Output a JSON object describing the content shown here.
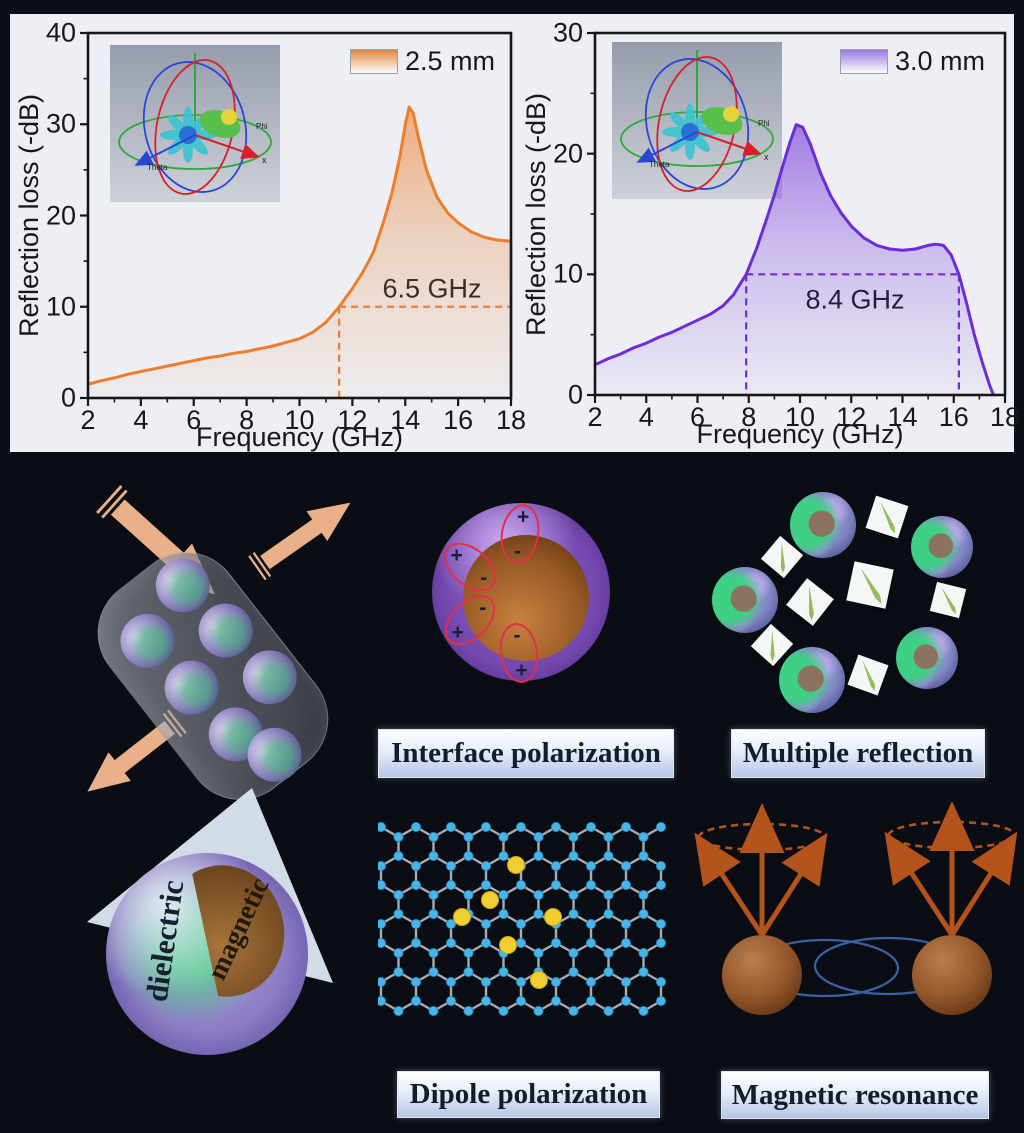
{
  "chart_data": [
    {
      "type": "area",
      "xlabel": "Frequency (GHz)",
      "ylabel": "Reflection loss (-dB)",
      "xlim": [
        2,
        18
      ],
      "ylim": [
        0,
        40
      ],
      "xticks": [
        2,
        4,
        6,
        8,
        10,
        12,
        14,
        16,
        18
      ],
      "yticks": [
        0,
        10,
        20,
        30,
        40
      ],
      "grid": false,
      "legend": {
        "label": "2.5 mm",
        "position": "top-right"
      },
      "color": "#ED7D2B",
      "annotation": {
        "text": "6.5 GHz",
        "level_db": 10,
        "x_start": 11.5,
        "x_end": 18
      },
      "series": [
        {
          "name": "2.5 mm",
          "x": [
            2,
            2.5,
            3,
            3.5,
            4,
            4.5,
            5,
            5.5,
            6,
            6.5,
            7,
            7.5,
            8,
            8.5,
            9,
            9.5,
            10,
            10.5,
            11,
            11.5,
            12,
            12.4,
            12.8,
            13.2,
            13.5,
            13.8,
            14.0,
            14.15,
            14.3,
            14.5,
            14.8,
            15.2,
            15.6,
            16,
            16.5,
            17,
            17.5,
            18
          ],
          "y": [
            1.5,
            1.9,
            2.2,
            2.6,
            2.9,
            3.2,
            3.5,
            3.8,
            4.1,
            4.4,
            4.6,
            4.9,
            5.1,
            5.4,
            5.7,
            6.1,
            6.5,
            7.2,
            8.3,
            10,
            12,
            13.8,
            16,
            19.5,
            22.5,
            26.5,
            30,
            31.9,
            31.2,
            28.5,
            25,
            22,
            20.3,
            19.2,
            18.2,
            17.6,
            17.3,
            17.2
          ]
        }
      ],
      "inset_axis_labels": {
        "phi": "Phi",
        "x": "x",
        "theta": "Theta"
      }
    },
    {
      "type": "area",
      "xlabel": "Frequency (GHz)",
      "ylabel": "Reflection loss (-dB)",
      "xlim": [
        2,
        18
      ],
      "ylim": [
        0,
        30
      ],
      "xticks": [
        2,
        4,
        6,
        8,
        10,
        12,
        14,
        16,
        18
      ],
      "yticks": [
        0,
        10,
        20,
        30
      ],
      "grid": false,
      "legend": {
        "label": "3.0 mm",
        "position": "top-right"
      },
      "color": "#6E2BD8",
      "annotation": {
        "text": "8.4 GHz",
        "level_db": 10,
        "x_start": 7.9,
        "x_end": 16.2
      },
      "series": [
        {
          "name": "3.0 mm",
          "x": [
            2,
            2.5,
            3,
            3.5,
            4,
            4.5,
            5,
            5.5,
            6,
            6.5,
            7,
            7.4,
            7.9,
            8.3,
            8.7,
            9,
            9.3,
            9.6,
            9.85,
            10.1,
            10.4,
            10.8,
            11.2,
            11.6,
            12,
            12.5,
            13,
            13.5,
            14,
            14.5,
            15,
            15.3,
            15.6,
            15.9,
            16.2,
            16.5,
            16.8,
            17.1,
            17.4,
            17.55
          ],
          "y": [
            2.5,
            3,
            3.4,
            3.9,
            4.3,
            4.8,
            5.2,
            5.7,
            6.2,
            6.7,
            7.4,
            8.3,
            10,
            12.1,
            14.6,
            16.6,
            18.8,
            20.9,
            22.4,
            22.2,
            20.8,
            18.4,
            16.5,
            15.1,
            14,
            13,
            12.4,
            12.1,
            12.0,
            12.1,
            12.4,
            12.5,
            12.4,
            11.6,
            10,
            7.6,
            5,
            2.8,
            0.8,
            0
          ]
        }
      ],
      "inset_axis_labels": {
        "phi": "Phi",
        "x": "x",
        "theta": "Theta"
      }
    }
  ],
  "mechanisms": {
    "interface": {
      "label": "Interface polarization",
      "charge_pairs": [
        {
          "outer": "+",
          "inner": "-"
        },
        {
          "outer": "+",
          "inner": "-"
        },
        {
          "outer": "+",
          "inner": "-"
        },
        {
          "outer": "+",
          "inner": "-"
        }
      ]
    },
    "multiple": {
      "label": "Multiple reflection"
    },
    "dipole": {
      "label": "Dipole polarization"
    },
    "resonance": {
      "label": "Magnetic resonance"
    },
    "core_shell": {
      "shell": "dielectric",
      "core": "magnetic"
    }
  }
}
